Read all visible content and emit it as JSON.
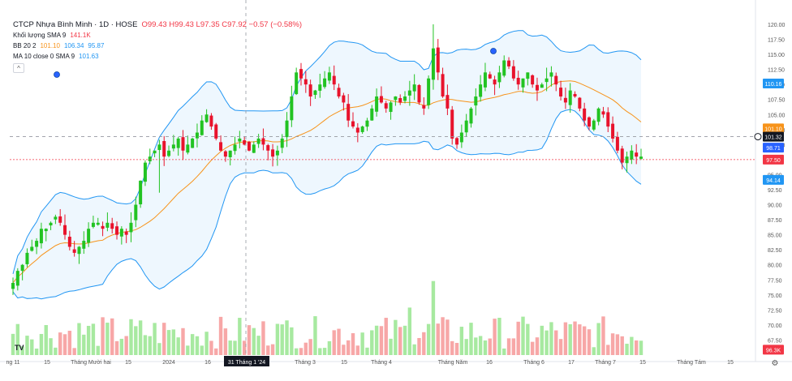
{
  "legend": {
    "symbol": "CTCP Nhựa Bình Minh · 1D · HOSE",
    "ohlc": "O99.43  H99.43  L97.35  C97.92  −0.57 (−0.58%)",
    "vol_label": "Khối lượng SMA 9",
    "vol_value": "141.1K",
    "bb_label": "BB 20 2",
    "bb_mid": "101.10",
    "bb_up": "106.34",
    "bb_low": "95.87",
    "ma_label": "MA 10 close 0 SMA 9",
    "ma_value": "101.63",
    "collapse": "^"
  },
  "tv_logo": "TV",
  "crosshair_date": "31 Tháng 1 '24",
  "settings": "⚙",
  "chart_data": {
    "type": "candlestick",
    "ylim": [
      65,
      120
    ],
    "yticks": [
      67.5,
      70,
      72.5,
      75,
      77.5,
      80,
      82.5,
      85,
      87.5,
      90,
      92.5,
      95,
      97.5,
      100,
      102.5,
      105,
      107.5,
      110,
      112.5,
      115,
      117.5,
      120
    ],
    "xticks": [
      "ng 11",
      "15",
      "Tháng Mười hai",
      "15",
      "2024",
      "16",
      "31 Tháng 1 '24",
      "Tháng 3",
      "15",
      "Tháng 4",
      "Tháng Năm",
      "16",
      "Tháng 6",
      "17",
      "Tháng 7",
      "15",
      "Tháng Tám",
      "15"
    ],
    "price_badges": [
      {
        "label": "110.16",
        "color": "#2196f3",
        "value": 110.16
      },
      {
        "label": "101.10",
        "color": "#f7931a",
        "value": 102.7
      },
      {
        "label": "101.32",
        "color": "#131722",
        "value": 101.32
      },
      {
        "label": "98.71",
        "color": "#2962ff",
        "value": 99.5
      },
      {
        "label": "97.50",
        "color": "#f23645",
        "value": 97.5
      },
      {
        "label": "94.14",
        "color": "#2196f3",
        "value": 94.14
      },
      {
        "label": "96.3K",
        "color": "#f23645",
        "value": 65.9
      }
    ],
    "crosshair_price": 101.32,
    "last_price": 97.5,
    "closes": [
      77,
      79,
      80,
      82,
      83,
      84,
      86,
      86,
      87,
      88,
      87,
      85,
      83,
      82,
      83,
      84,
      86,
      87,
      87,
      86,
      87,
      86,
      85,
      86,
      85,
      87,
      90,
      94,
      97,
      98,
      99,
      100,
      98,
      99,
      100,
      101,
      99,
      100,
      101,
      102,
      104,
      105,
      103,
      101,
      99,
      98,
      99,
      100,
      101,
      100,
      99,
      100,
      101,
      100,
      99,
      98,
      99,
      101,
      104,
      108,
      112,
      111,
      110,
      108,
      109,
      110,
      111,
      112,
      110,
      108,
      107,
      104,
      103,
      102,
      103,
      104,
      106,
      108,
      107,
      106,
      107,
      108,
      107,
      108,
      109,
      110,
      107,
      106,
      111,
      116,
      112,
      108,
      106,
      101,
      100,
      102,
      104,
      106,
      108,
      110,
      112,
      111,
      110,
      112,
      114,
      113,
      111,
      110,
      111,
      112,
      110,
      109,
      110,
      111,
      112,
      110,
      108,
      107,
      109,
      108,
      106,
      104,
      103,
      104,
      106,
      105,
      103,
      101,
      99,
      97,
      98,
      99,
      98,
      98
    ]
  }
}
